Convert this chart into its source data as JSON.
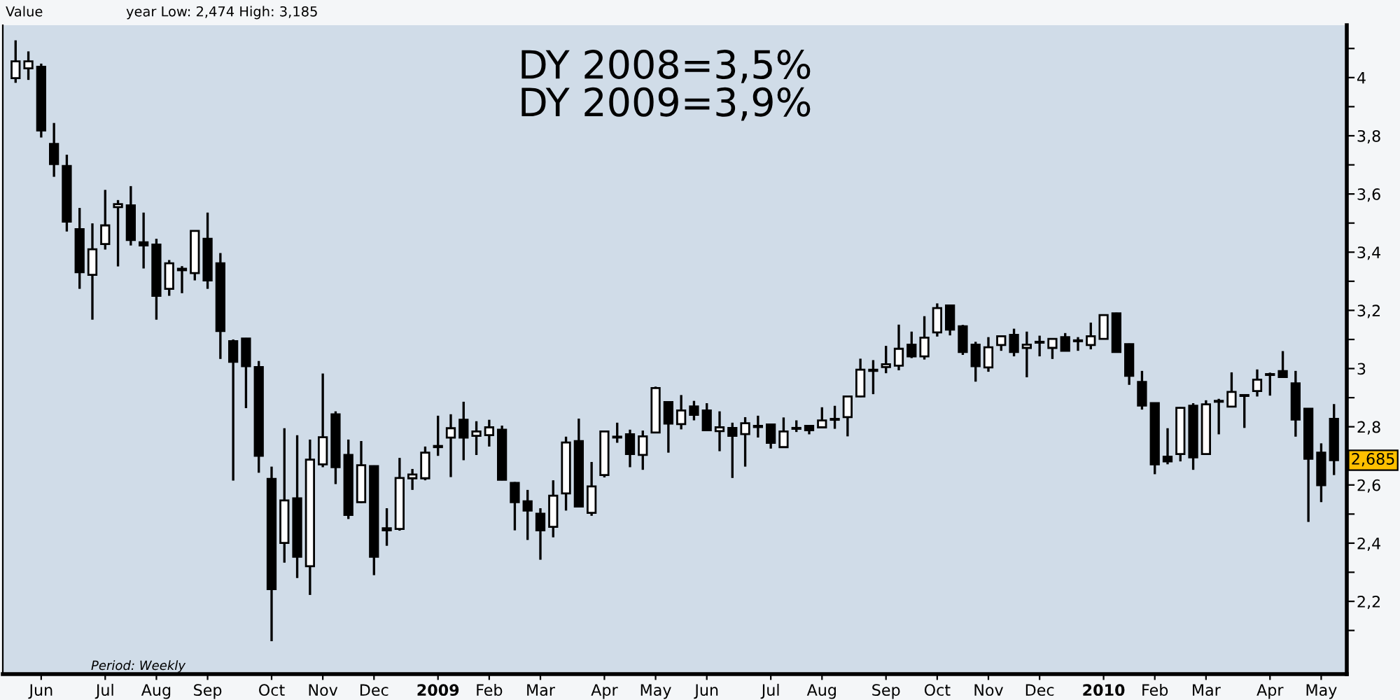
{
  "chart_data": {
    "type": "candlestick",
    "annotations": [
      "Value",
      "year Low: 2,474 High: 3,185",
      "DY 2008=3,5%\nDY 2009=3,9%",
      "Period: Weekly",
      {
        "text": "2,685",
        "y": 2.685
      }
    ],
    "x": [
      "2008-05-23",
      "2008-05-30",
      "2008-06-06",
      "2008-06-13",
      "2008-06-20",
      "2008-06-27",
      "2008-07-04",
      "2008-07-11",
      "2008-07-18",
      "2008-07-25",
      "2008-08-01",
      "2008-08-08",
      "2008-08-15",
      "2008-08-22",
      "2008-08-29",
      "2008-09-05",
      "2008-09-12",
      "2008-09-19",
      "2008-09-26",
      "2008-10-03",
      "2008-10-10",
      "2008-10-17",
      "2008-10-24",
      "2008-10-31",
      "2008-11-07",
      "2008-11-14",
      "2008-11-21",
      "2008-11-28",
      "2008-12-05",
      "2008-12-12",
      "2008-12-19",
      "2008-12-26",
      "2009-01-02",
      "2009-01-09",
      "2009-01-16",
      "2009-01-23",
      "2009-01-30",
      "2009-02-06",
      "2009-02-13",
      "2009-02-20",
      "2009-02-27",
      "2009-03-06",
      "2009-03-13",
      "2009-03-20",
      "2009-03-27",
      "2009-04-03",
      "2009-04-10",
      "2009-04-17",
      "2009-04-24",
      "2009-05-01",
      "2009-05-08",
      "2009-05-15",
      "2009-05-22",
      "2009-05-29",
      "2009-06-05",
      "2009-06-12",
      "2009-06-19",
      "2009-06-26",
      "2009-07-03",
      "2009-07-10",
      "2009-07-17",
      "2009-07-24",
      "2009-07-31",
      "2009-08-07",
      "2009-08-14",
      "2009-08-21",
      "2009-08-28",
      "2009-09-04",
      "2009-09-11",
      "2009-09-18",
      "2009-09-25",
      "2009-10-02",
      "2009-10-09",
      "2009-10-16",
      "2009-10-23",
      "2009-10-30",
      "2009-11-06",
      "2009-11-13",
      "2009-11-20",
      "2009-11-27",
      "2009-12-04",
      "2009-12-11",
      "2009-12-18",
      "2009-12-25",
      "2010-01-01",
      "2010-01-08",
      "2010-01-15",
      "2010-01-22",
      "2010-01-29",
      "2010-02-05",
      "2010-02-12",
      "2010-02-19",
      "2010-02-26",
      "2010-03-05",
      "2010-03-12",
      "2010-03-19",
      "2010-03-26",
      "2010-04-02",
      "2010-04-09",
      "2010-04-16",
      "2010-04-23",
      "2010-04-30",
      "2010-05-07",
      "2010-05-14"
    ],
    "ohlc": [
      [
        3.998,
        4.128,
        3.982,
        4.056
      ],
      [
        4.032,
        4.09,
        3.992,
        4.056
      ],
      [
        4.037,
        4.048,
        3.794,
        3.818
      ],
      [
        3.772,
        3.844,
        3.659,
        3.703
      ],
      [
        3.696,
        3.735,
        3.471,
        3.505
      ],
      [
        3.479,
        3.552,
        3.274,
        3.331
      ],
      [
        3.322,
        3.499,
        3.168,
        3.41
      ],
      [
        3.428,
        3.614,
        3.409,
        3.492
      ],
      [
        3.555,
        3.579,
        3.351,
        3.565
      ],
      [
        3.561,
        3.627,
        3.423,
        3.442
      ],
      [
        3.434,
        3.536,
        3.344,
        3.423
      ],
      [
        3.426,
        3.446,
        3.168,
        3.25
      ],
      [
        3.274,
        3.373,
        3.25,
        3.362
      ],
      [
        3.343,
        3.352,
        3.259,
        3.338
      ],
      [
        3.328,
        3.475,
        3.303,
        3.473
      ],
      [
        3.446,
        3.536,
        3.274,
        3.303
      ],
      [
        3.362,
        3.397,
        3.033,
        3.129
      ],
      [
        3.094,
        3.1,
        2.615,
        3.023
      ],
      [
        3.103,
        3.105,
        2.864,
        3.008
      ],
      [
        3.005,
        3.026,
        2.642,
        2.7
      ],
      [
        2.621,
        2.663,
        2.063,
        2.242
      ],
      [
        2.401,
        2.795,
        2.333,
        2.547
      ],
      [
        2.554,
        2.771,
        2.28,
        2.353
      ],
      [
        2.321,
        2.756,
        2.222,
        2.687
      ],
      [
        2.671,
        2.983,
        2.661,
        2.764
      ],
      [
        2.843,
        2.853,
        2.603,
        2.661
      ],
      [
        2.703,
        2.756,
        2.483,
        2.497
      ],
      [
        2.541,
        2.751,
        2.538,
        2.668
      ],
      [
        2.665,
        2.667,
        2.29,
        2.353
      ],
      [
        2.451,
        2.52,
        2.391,
        2.444
      ],
      [
        2.449,
        2.693,
        2.443,
        2.624
      ],
      [
        2.623,
        2.655,
        2.583,
        2.636
      ],
      [
        2.623,
        2.732,
        2.616,
        2.711
      ],
      [
        2.734,
        2.838,
        2.7,
        2.73
      ],
      [
        2.763,
        2.843,
        2.627,
        2.795
      ],
      [
        2.824,
        2.886,
        2.685,
        2.763
      ],
      [
        2.769,
        2.819,
        2.703,
        2.784
      ],
      [
        2.771,
        2.824,
        2.732,
        2.798
      ],
      [
        2.79,
        2.804,
        2.616,
        2.618
      ],
      [
        2.607,
        2.61,
        2.444,
        2.541
      ],
      [
        2.544,
        2.583,
        2.411,
        2.512
      ],
      [
        2.501,
        2.52,
        2.343,
        2.444
      ],
      [
        2.456,
        2.616,
        2.42,
        2.563
      ],
      [
        2.571,
        2.766,
        2.512,
        2.746
      ],
      [
        2.751,
        2.828,
        2.524,
        2.526
      ],
      [
        2.504,
        2.679,
        2.494,
        2.595
      ],
      [
        2.634,
        2.786,
        2.626,
        2.784
      ],
      [
        2.763,
        2.814,
        2.745,
        2.766
      ],
      [
        2.774,
        2.79,
        2.661,
        2.706
      ],
      [
        2.703,
        2.787,
        2.652,
        2.767
      ],
      [
        2.78,
        2.938,
        2.778,
        2.933
      ],
      [
        2.885,
        2.887,
        2.711,
        2.811
      ],
      [
        2.809,
        2.909,
        2.791,
        2.856
      ],
      [
        2.87,
        2.889,
        2.822,
        2.841
      ],
      [
        2.856,
        2.881,
        2.787,
        2.788
      ],
      [
        2.785,
        2.853,
        2.716,
        2.798
      ],
      [
        2.796,
        2.814,
        2.624,
        2.769
      ],
      [
        2.775,
        2.833,
        2.663,
        2.812
      ],
      [
        2.803,
        2.838,
        2.763,
        2.799
      ],
      [
        2.808,
        2.81,
        2.725,
        2.745
      ],
      [
        2.73,
        2.832,
        2.727,
        2.784
      ],
      [
        2.793,
        2.822,
        2.782,
        2.796
      ],
      [
        2.803,
        2.805,
        2.774,
        2.788
      ],
      [
        2.798,
        2.867,
        2.796,
        2.822
      ],
      [
        2.824,
        2.872,
        2.793,
        2.827
      ],
      [
        2.833,
        2.906,
        2.767,
        2.904
      ],
      [
        2.904,
        3.034,
        2.902,
        2.996
      ],
      [
        2.992,
        3.029,
        2.912,
        2.996
      ],
      [
        3.005,
        3.078,
        2.984,
        3.015
      ],
      [
        3.01,
        3.151,
        2.994,
        3.068
      ],
      [
        3.082,
        3.127,
        3.036,
        3.042
      ],
      [
        3.042,
        3.18,
        3.031,
        3.106
      ],
      [
        3.124,
        3.224,
        3.11,
        3.208
      ],
      [
        3.217,
        3.219,
        3.114,
        3.134
      ],
      [
        3.145,
        3.15,
        3.047,
        3.057
      ],
      [
        3.082,
        3.092,
        2.955,
        3.008
      ],
      [
        3.004,
        3.108,
        2.989,
        3.073
      ],
      [
        3.081,
        3.114,
        3.061,
        3.111
      ],
      [
        3.116,
        3.137,
        3.042,
        3.057
      ],
      [
        3.071,
        3.127,
        2.97,
        3.082
      ],
      [
        3.092,
        3.113,
        3.042,
        3.089
      ],
      [
        3.071,
        3.104,
        3.033,
        3.102
      ],
      [
        3.108,
        3.122,
        3.06,
        3.061
      ],
      [
        3.097,
        3.108,
        3.061,
        3.094
      ],
      [
        3.081,
        3.158,
        3.066,
        3.111
      ],
      [
        3.102,
        3.186,
        3.1,
        3.184
      ],
      [
        3.19,
        3.192,
        3.055,
        3.057
      ],
      [
        3.084,
        3.086,
        2.944,
        2.975
      ],
      [
        2.954,
        2.992,
        2.859,
        2.873
      ],
      [
        2.881,
        2.883,
        2.637,
        2.671
      ],
      [
        2.697,
        2.795,
        2.671,
        2.681
      ],
      [
        2.706,
        2.867,
        2.681,
        2.865
      ],
      [
        2.872,
        2.881,
        2.652,
        2.695
      ],
      [
        2.706,
        2.891,
        2.704,
        2.877
      ],
      [
        2.886,
        2.896,
        2.774,
        2.889
      ],
      [
        2.869,
        2.987,
        2.867,
        2.92
      ],
      [
        2.909,
        2.912,
        2.796,
        2.906
      ],
      [
        2.923,
        2.997,
        2.904,
        2.962
      ],
      [
        2.978,
        2.986,
        2.907,
        2.981
      ],
      [
        2.991,
        3.06,
        2.97,
        2.971
      ],
      [
        2.949,
        2.992,
        2.766,
        2.825
      ],
      [
        2.862,
        2.864,
        2.473,
        2.69
      ],
      [
        2.711,
        2.743,
        2.541,
        2.599
      ],
      [
        2.827,
        2.878,
        2.634,
        2.685
      ]
    ],
    "xlim": [
      "2008-05-16",
      "2010-05-21"
    ],
    "xticks": [
      {
        "value": "2008-06-06",
        "label": "Jun"
      },
      {
        "value": "2008-07-11",
        "label": "Jul"
      },
      {
        "value": "2008-08-08",
        "label": "Aug"
      },
      {
        "value": "2008-09-05",
        "label": "Sep"
      },
      {
        "value": "2008-10-10",
        "label": "Oct"
      },
      {
        "value": "2008-11-07",
        "label": "Nov"
      },
      {
        "value": "2008-12-05",
        "label": "Dec"
      },
      {
        "value": "2009-01-09",
        "label": "2009"
      },
      {
        "value": "2009-02-06",
        "label": "Feb"
      },
      {
        "value": "2009-03-06",
        "label": "Mar"
      },
      {
        "value": "2009-04-10",
        "label": "Apr"
      },
      {
        "value": "2009-05-08",
        "label": "May"
      },
      {
        "value": "2009-06-05",
        "label": "Jun"
      },
      {
        "value": "2009-07-10",
        "label": "Jul"
      },
      {
        "value": "2009-08-07",
        "label": "Aug"
      },
      {
        "value": "2009-09-11",
        "label": "Sep"
      },
      {
        "value": "2009-10-09",
        "label": "Oct"
      },
      {
        "value": "2009-11-06",
        "label": "Nov"
      },
      {
        "value": "2009-12-04",
        "label": "Dec"
      },
      {
        "value": "2010-01-08",
        "label": "2010"
      },
      {
        "value": "2010-02-05",
        "label": "Feb"
      },
      {
        "value": "2010-03-05",
        "label": "Mar"
      },
      {
        "value": "2010-04-09",
        "label": "Apr"
      },
      {
        "value": "2010-05-07",
        "label": "May"
      }
    ],
    "ylim": [
      1.95,
      4.18
    ],
    "yticks": [
      {
        "value": 2.1,
        "label": null
      },
      {
        "value": 2.2,
        "label": "2,2"
      },
      {
        "value": 2.3,
        "label": null
      },
      {
        "value": 2.4,
        "label": "2,4"
      },
      {
        "value": 2.5,
        "label": null
      },
      {
        "value": 2.6,
        "label": "2,6"
      },
      {
        "value": 2.7,
        "label": null
      },
      {
        "value": 2.8,
        "label": "2,8"
      },
      {
        "value": 2.9,
        "label": null
      },
      {
        "value": 3.0,
        "label": "3"
      },
      {
        "value": 3.1,
        "label": null
      },
      {
        "value": 3.2,
        "label": "3,2"
      },
      {
        "value": 3.3,
        "label": null
      },
      {
        "value": 3.4,
        "label": "3,4"
      },
      {
        "value": 3.5,
        "label": null
      },
      {
        "value": 3.6,
        "label": "3,6"
      },
      {
        "value": 3.7,
        "label": null
      },
      {
        "value": 3.8,
        "label": "3,8"
      },
      {
        "value": 3.9,
        "label": null
      },
      {
        "value": 4.0,
        "label": "4"
      },
      {
        "value": 4.1,
        "label": null
      }
    ],
    "grid": false
  }
}
